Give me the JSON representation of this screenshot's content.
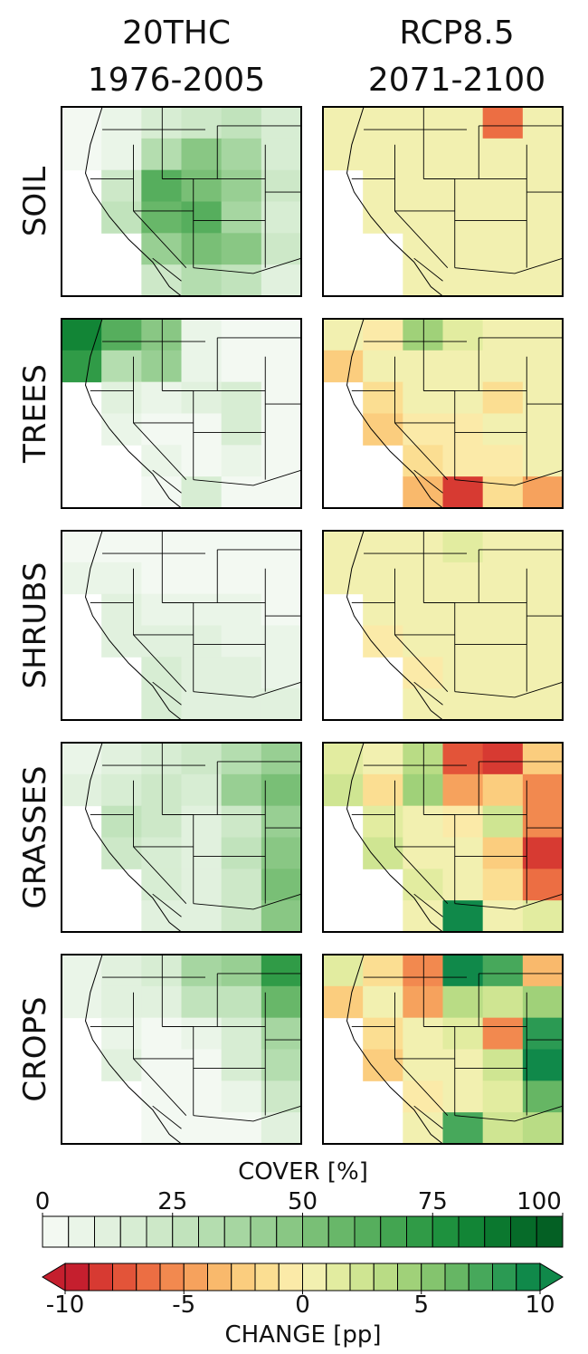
{
  "columns": [
    {
      "title_line1": "20THC",
      "title_line2": "1976-2005"
    },
    {
      "title_line1": "RCP8.5",
      "title_line2": "2071-2100"
    }
  ],
  "rows": [
    "SOIL",
    "TREES",
    "SHRUBS",
    "GRASSES",
    "CROPS"
  ],
  "panels": [
    [
      [
        [
          2,
          5,
          15,
          20,
          25,
          15
        ],
        [
          3,
          8,
          30,
          45,
          35,
          15
        ],
        [
          null,
          20,
          60,
          50,
          40,
          20
        ],
        [
          null,
          25,
          55,
          60,
          35,
          15
        ],
        [
          null,
          null,
          40,
          50,
          45,
          20
        ],
        [
          null,
          null,
          20,
          30,
          25,
          10
        ]
      ],
      [
        [
          0,
          0,
          0,
          0,
          -7,
          0
        ],
        [
          0,
          0,
          0,
          0,
          0,
          0
        ],
        [
          null,
          0,
          0,
          0,
          0,
          0
        ],
        [
          null,
          0,
          0,
          0,
          0,
          0
        ],
        [
          null,
          null,
          0,
          0,
          0,
          0
        ],
        [
          null,
          null,
          0,
          0,
          0,
          0
        ]
      ]
    ],
    [
      [
        [
          80,
          60,
          45,
          5,
          3,
          3
        ],
        [
          70,
          30,
          40,
          5,
          3,
          2
        ],
        [
          null,
          10,
          5,
          10,
          15,
          3
        ],
        [
          null,
          8,
          3,
          3,
          15,
          2
        ],
        [
          null,
          null,
          5,
          3,
          5,
          2
        ],
        [
          null,
          null,
          3,
          15,
          2,
          2
        ]
      ],
      [
        [
          0,
          -1,
          4,
          1,
          0,
          0
        ],
        [
          -3,
          0,
          0,
          0,
          0,
          0
        ],
        [
          null,
          -2,
          0,
          0,
          -2,
          0
        ],
        [
          null,
          -3,
          -1,
          -1,
          0,
          0
        ],
        [
          null,
          null,
          -2,
          -1,
          -1,
          0
        ],
        [
          null,
          null,
          -4,
          -9,
          -2,
          -5
        ]
      ]
    ],
    [
      [
        [
          3,
          3,
          3,
          3,
          3,
          3
        ],
        [
          5,
          5,
          3,
          3,
          3,
          3
        ],
        [
          null,
          10,
          5,
          8,
          5,
          3
        ],
        [
          null,
          12,
          10,
          10,
          8,
          5
        ],
        [
          null,
          null,
          15,
          12,
          10,
          8
        ],
        [
          null,
          null,
          15,
          10,
          10,
          10
        ]
      ],
      [
        [
          0,
          0,
          0,
          1,
          0,
          0
        ],
        [
          0,
          0,
          0,
          0,
          0,
          0
        ],
        [
          null,
          0,
          0,
          0,
          0,
          0
        ],
        [
          null,
          -1,
          0,
          0,
          0,
          0
        ],
        [
          null,
          null,
          -1,
          0,
          0,
          0
        ],
        [
          null,
          null,
          0,
          0,
          0,
          0
        ]
      ]
    ],
    [
      [
        [
          5,
          10,
          15,
          20,
          30,
          40
        ],
        [
          10,
          15,
          20,
          15,
          40,
          50
        ],
        [
          null,
          25,
          20,
          10,
          20,
          40
        ],
        [
          null,
          20,
          15,
          10,
          25,
          45
        ],
        [
          null,
          null,
          15,
          10,
          20,
          50
        ],
        [
          null,
          null,
          10,
          10,
          20,
          45
        ]
      ],
      [
        [
          1,
          0,
          3,
          -8,
          -9,
          -3
        ],
        [
          2,
          -2,
          4,
          -5,
          -3,
          -6
        ],
        [
          null,
          1,
          0,
          -1,
          2,
          -6
        ],
        [
          null,
          2,
          0,
          0,
          -3,
          -9
        ],
        [
          null,
          null,
          1,
          0,
          -2,
          -7
        ],
        [
          null,
          null,
          0,
          9,
          0,
          1
        ]
      ]
    ],
    [
      [
        [
          5,
          10,
          15,
          35,
          40,
          70
        ],
        [
          5,
          10,
          10,
          25,
          25,
          55
        ],
        [
          null,
          5,
          3,
          5,
          15,
          35
        ],
        [
          null,
          10,
          3,
          3,
          15,
          30
        ],
        [
          null,
          null,
          3,
          3,
          5,
          20
        ],
        [
          null,
          null,
          2,
          2,
          3,
          10
        ]
      ],
      [
        [
          1,
          -2,
          -6,
          9,
          7,
          -4
        ],
        [
          -3,
          0,
          -5,
          3,
          2,
          4
        ],
        [
          null,
          -2,
          0,
          1,
          -6,
          8
        ],
        [
          null,
          -3,
          0,
          0,
          2,
          9
        ],
        [
          null,
          null,
          -1,
          0,
          1,
          6
        ],
        [
          null,
          null,
          0,
          7,
          2,
          3
        ]
      ]
    ]
  ],
  "cover_bar": {
    "label": "COVER [%]",
    "lim": [
      0,
      100
    ],
    "ticks": [
      0,
      25,
      50,
      75,
      100
    ],
    "colors": [
      "#f3f9f2",
      "#eaf5e8",
      "#e1f1de",
      "#d7edd3",
      "#cde8c8",
      "#c1e3bc",
      "#b4ddaf",
      "#a6d6a1",
      "#98cf93",
      "#89c784",
      "#79bf76",
      "#68b769",
      "#56ae5d",
      "#43a551",
      "#309b47",
      "#1e913e",
      "#128536",
      "#0b782f",
      "#066b29",
      "#046024"
    ]
  },
  "change_bar": {
    "label": "CHANGE [pp]",
    "lim": [
      -10,
      10
    ],
    "ticks": [
      -10,
      -5,
      0,
      5,
      10
    ],
    "colors": [
      "#c51f2e",
      "#d73a32",
      "#e35439",
      "#ec6e43",
      "#f2894f",
      "#f6a25d",
      "#f9b96c",
      "#fbcd7e",
      "#fbde92",
      "#fbeaa8",
      "#f2f0b0",
      "#e2eca0",
      "#cfe592",
      "#b9dc85",
      "#a0d179",
      "#84c46e",
      "#66b664",
      "#47a85b",
      "#2b9a53",
      "#10894a"
    ]
  }
}
